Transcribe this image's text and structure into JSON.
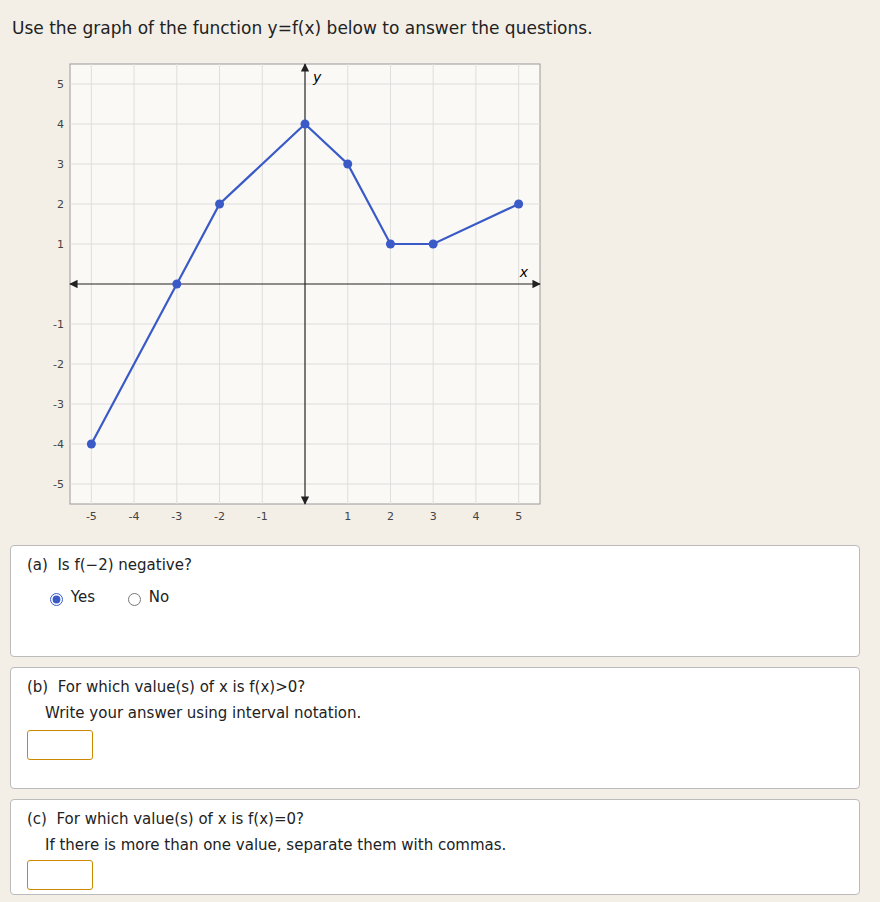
{
  "chart_data": {
    "type": "line",
    "title": "Use the graph of the function y=f(x) below to answer the questions.",
    "x": [
      -5,
      -3,
      -2,
      0,
      1,
      2,
      3,
      5
    ],
    "values": [
      -4,
      0,
      2,
      4,
      3,
      1,
      1,
      2
    ],
    "color": "#3a5bc7",
    "marker": "circle",
    "xlim": [
      -5.5,
      5.5
    ],
    "ylim": [
      -5.5,
      5.5
    ],
    "xticks": [
      -5,
      -4,
      -3,
      -2,
      -1,
      1,
      2,
      3,
      4,
      5
    ],
    "yticks": [
      -5,
      -4,
      -3,
      -2,
      -1,
      1,
      2,
      3,
      4,
      5
    ],
    "grid": true,
    "x_label": "x",
    "y_label": "y",
    "annotations": [
      "(a)  Is f(−2) negative?",
      "Yes",
      "No",
      "(b)  For which value(s) of x is f(x)>0?",
      "Write your answer using interval notation.",
      "(c)  For which value(s) of x is f(x)=0?",
      "If there is more than one value, separate them with commas."
    ]
  }
}
